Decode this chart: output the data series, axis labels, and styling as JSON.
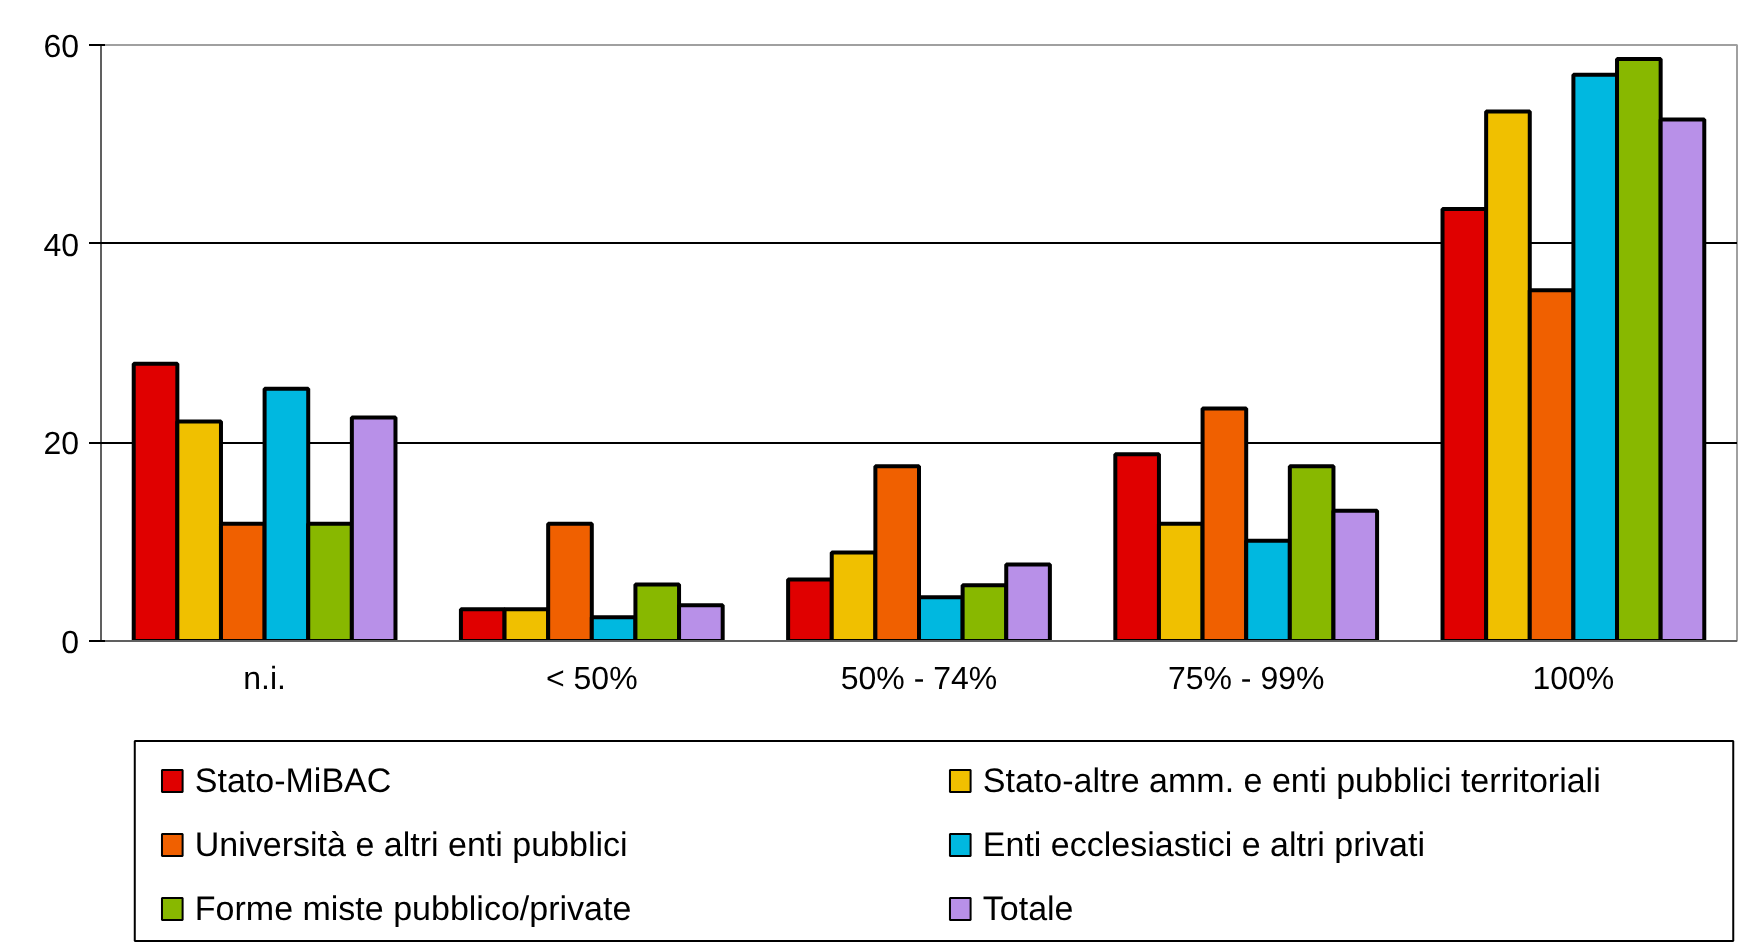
{
  "chart_data": {
    "type": "bar",
    "categories": [
      "n.i.",
      "< 50%",
      "50% - 74%",
      "75% - 99%",
      "100%"
    ],
    "series": [
      {
        "name": "Stato-MiBAC",
        "color": "#e00000",
        "values": [
          27.9,
          3.2,
          6.2,
          18.8,
          43.5
        ]
      },
      {
        "name": "Stato-altre amm. e enti pubblici territoriali",
        "color": "#f0c000",
        "values": [
          22.1,
          3.2,
          8.9,
          11.8,
          53.3
        ]
      },
      {
        "name": "Università e altri enti pubblici",
        "color": "#f06000",
        "values": [
          11.8,
          11.8,
          17.6,
          23.4,
          35.3
        ]
      },
      {
        "name": "Enti ecclesiastici e altri privati",
        "color": "#00b8e0",
        "values": [
          25.4,
          2.4,
          4.4,
          10.1,
          57.0
        ]
      },
      {
        "name": "Forme miste pubblico/private",
        "color": "#88b800",
        "values": [
          11.8,
          5.7,
          5.6,
          17.6,
          58.6
        ]
      },
      {
        "name": "Totale",
        "color": "#b890e8",
        "values": [
          22.5,
          3.6,
          7.7,
          13.1,
          52.5
        ]
      }
    ],
    "ylim": [
      0,
      60
    ],
    "yticks": [
      0,
      20,
      40,
      60
    ],
    "grid": "y",
    "legend": "bottom"
  }
}
